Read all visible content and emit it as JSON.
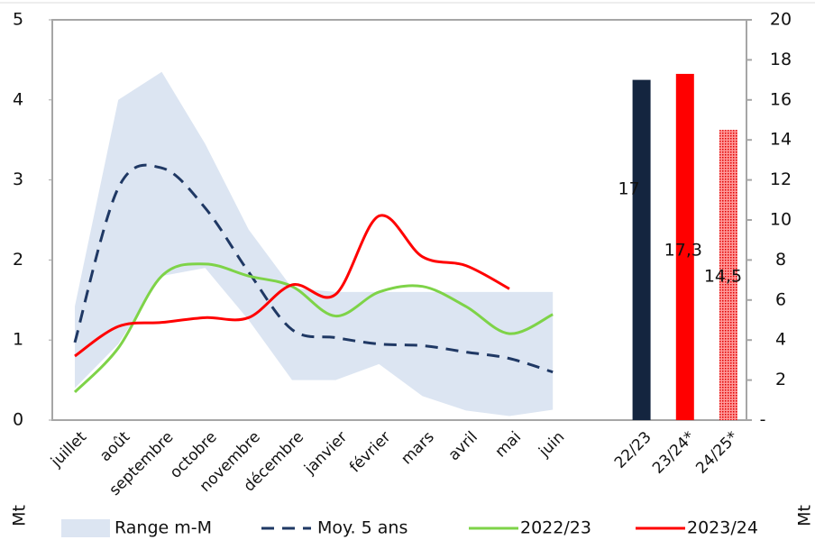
{
  "chart_data": {
    "type": "line",
    "categories": [
      "juillet",
      "août",
      "septembre",
      "octobre",
      "novembre",
      "décembre",
      "janvier",
      "février",
      "mars",
      "avril",
      "mai",
      "juin",
      null,
      "22/23",
      "23/24*",
      "24/25*"
    ],
    "ylabel": "Mt",
    "y2label": "Mt",
    "ylim": [
      0,
      5
    ],
    "yticks": [
      0,
      1,
      2,
      3,
      4,
      5
    ],
    "y2lim": [
      0,
      20
    ],
    "y2ticks": [
      {
        "value": 0,
        "label": "-"
      },
      2,
      4,
      6,
      8,
      10,
      12,
      14,
      16,
      18,
      20
    ],
    "band": {
      "name": "Range m-M",
      "color": "#dce5f2",
      "upper": [
        1.42,
        4.0,
        4.35,
        3.45,
        2.38,
        1.65,
        1.6,
        1.6,
        1.6,
        1.6,
        1.6,
        1.6,
        null,
        null,
        null,
        null
      ],
      "lower": [
        0.4,
        0.95,
        1.8,
        1.9,
        1.25,
        0.5,
        0.5,
        0.7,
        0.3,
        0.12,
        0.05,
        0.13,
        null,
        null,
        null,
        null
      ]
    },
    "series": [
      {
        "name": "Moy. 5 ans",
        "color": "#1f3864",
        "dashed": true,
        "values": [
          0.97,
          2.9,
          3.15,
          2.65,
          1.85,
          1.13,
          1.03,
          0.95,
          0.93,
          0.85,
          0.77,
          0.6,
          null,
          null,
          null,
          null
        ]
      },
      {
        "name": "2022/23",
        "color": "#7ed348",
        "values": [
          0.35,
          0.9,
          1.8,
          1.95,
          1.8,
          1.67,
          1.3,
          1.6,
          1.67,
          1.42,
          1.08,
          1.32,
          null,
          null,
          null,
          null
        ]
      },
      {
        "name": "2023/24",
        "color": "#ff0000",
        "values": [
          0.8,
          1.17,
          1.22,
          1.28,
          1.28,
          1.69,
          1.57,
          2.55,
          2.04,
          1.93,
          1.64,
          null,
          null,
          null,
          null,
          null
        ]
      }
    ],
    "bars": {
      "axis": "y2",
      "colors": [
        "#14253f",
        "#ff0000",
        "#ff0000"
      ],
      "patterns": [
        false,
        false,
        true
      ],
      "values": [
        null,
        null,
        null,
        null,
        null,
        null,
        null,
        null,
        null,
        null,
        null,
        null,
        null,
        17,
        17.3,
        14.5
      ],
      "value_labels": [
        null,
        null,
        null,
        null,
        null,
        null,
        null,
        null,
        null,
        null,
        null,
        null,
        null,
        "17",
        "17,3",
        "14,5"
      ]
    }
  }
}
